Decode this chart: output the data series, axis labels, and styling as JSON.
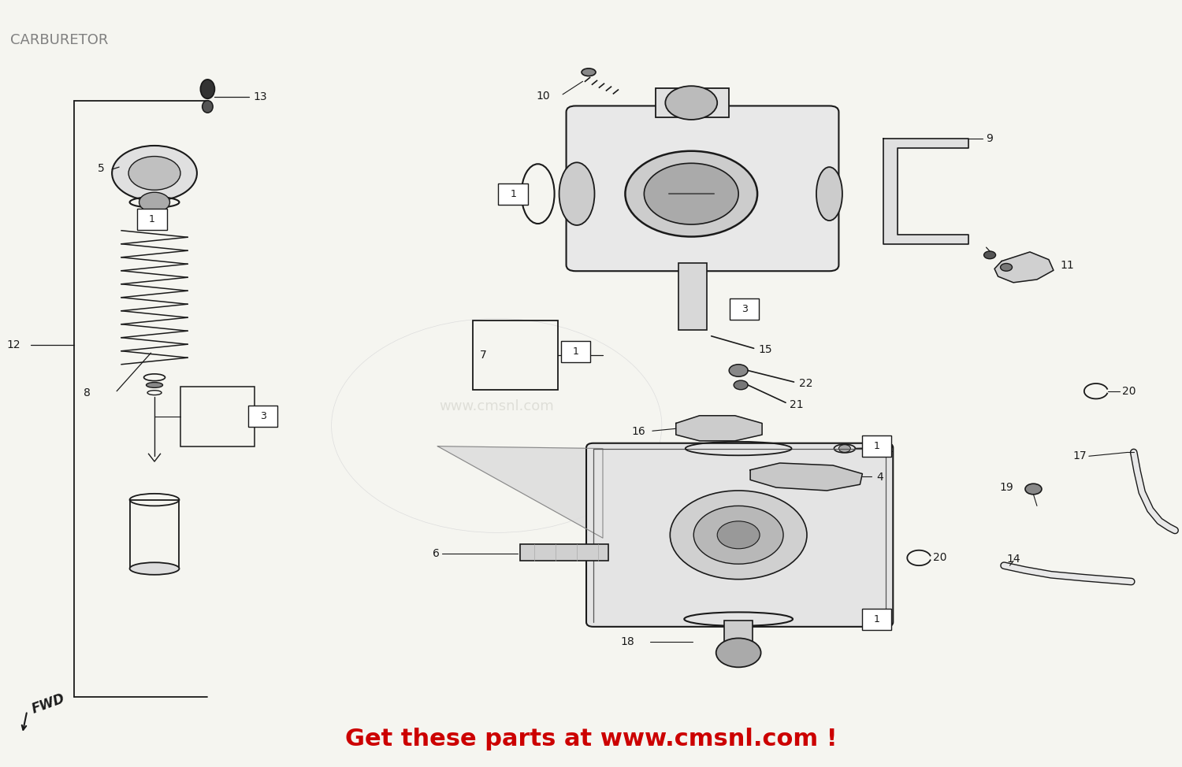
{
  "title": "CARBURETOR",
  "title_color": "#808080",
  "title_fontsize": 13,
  "footer_text": "Get these parts at www.cmsnl.com !",
  "footer_color": "#cc0000",
  "footer_fontsize": 22,
  "fwd_text": "FWD",
  "bg_color": "#f5f5f0",
  "watermark": "www.cmsnl.com",
  "watermark_color": "#d0d0c8"
}
